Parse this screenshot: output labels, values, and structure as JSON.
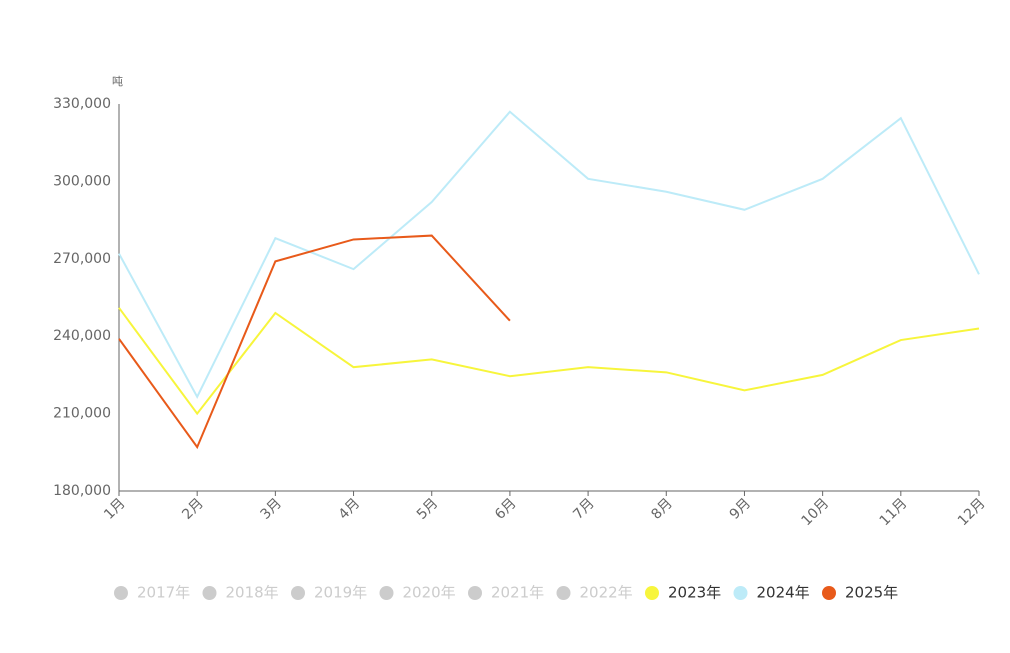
{
  "chart_data": {
    "type": "line",
    "y_unit": "吨",
    "categories": [
      "1月",
      "2月",
      "3月",
      "4月",
      "5月",
      "6月",
      "7月",
      "8月",
      "9月",
      "10月",
      "11月",
      "12月"
    ],
    "ylim": [
      180000,
      330000
    ],
    "yticks": [
      {
        "value": 180000,
        "label": "180,000"
      },
      {
        "value": 210000,
        "label": "210,000"
      },
      {
        "value": 240000,
        "label": "240,000"
      },
      {
        "value": 270000,
        "label": "270,000"
      },
      {
        "value": 300000,
        "label": "300,000"
      },
      {
        "value": 330000,
        "label": "330,000"
      }
    ],
    "grid": false,
    "legend": "bottom",
    "series": [
      {
        "name": "2017年",
        "color": "#cccccc",
        "visible": false,
        "values": [
          null,
          null,
          null,
          null,
          null,
          null,
          null,
          null,
          null,
          null,
          null,
          null
        ]
      },
      {
        "name": "2018年",
        "color": "#cccccc",
        "visible": false,
        "values": [
          null,
          null,
          null,
          null,
          null,
          null,
          null,
          null,
          null,
          null,
          null,
          null
        ]
      },
      {
        "name": "2019年",
        "color": "#cccccc",
        "visible": false,
        "values": [
          null,
          null,
          null,
          null,
          null,
          null,
          null,
          null,
          null,
          null,
          null,
          null
        ]
      },
      {
        "name": "2020年",
        "color": "#cccccc",
        "visible": false,
        "values": [
          null,
          null,
          null,
          null,
          null,
          null,
          null,
          null,
          null,
          null,
          null,
          null
        ]
      },
      {
        "name": "2021年",
        "color": "#cccccc",
        "visible": false,
        "values": [
          null,
          null,
          null,
          null,
          null,
          null,
          null,
          null,
          null,
          null,
          null,
          null
        ]
      },
      {
        "name": "2022年",
        "color": "#cccccc",
        "visible": false,
        "values": [
          null,
          null,
          null,
          null,
          null,
          null,
          null,
          null,
          null,
          null,
          null,
          null
        ]
      },
      {
        "name": "2023年",
        "color": "#f7f53c",
        "visible": true,
        "values": [
          251000,
          210000,
          249000,
          228000,
          231000,
          224500,
          228000,
          226000,
          219000,
          225000,
          238500,
          243000
        ]
      },
      {
        "name": "2024年",
        "color": "#bdebf8",
        "visible": true,
        "values": [
          272000,
          216500,
          278000,
          266000,
          292000,
          327000,
          301000,
          296000,
          289000,
          301000,
          324500,
          264000
        ]
      },
      {
        "name": "2025年",
        "color": "#e85a1a",
        "visible": true,
        "values": [
          239000,
          197000,
          269000,
          277500,
          279000,
          246000,
          null,
          null,
          null,
          null,
          null,
          null
        ]
      }
    ]
  }
}
